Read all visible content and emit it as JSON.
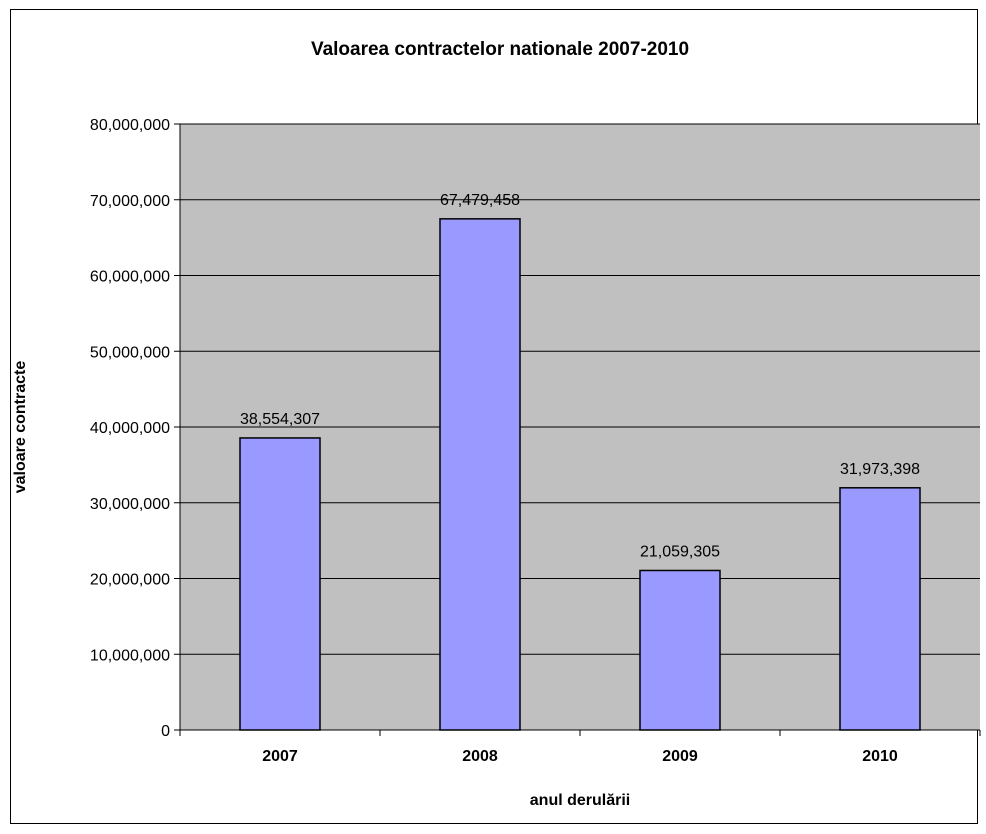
{
  "chart_data": {
    "type": "bar",
    "title": "Valoarea contractelor nationale 2007-2010",
    "xlabel": "anul derulării",
    "ylabel": "valoare contracte",
    "categories": [
      "2007",
      "2008",
      "2009",
      "2010"
    ],
    "values": [
      38554307,
      67479458,
      21059305,
      31973398
    ],
    "data_labels": [
      "38,554,307",
      "67,479,458",
      "21,059,305",
      "31,973,398"
    ],
    "ylim": [
      0,
      80000000
    ],
    "yticks": [
      0,
      10000000,
      20000000,
      30000000,
      40000000,
      50000000,
      60000000,
      70000000,
      80000000
    ],
    "ytick_labels": [
      "0",
      "10,000,000",
      "20,000,000",
      "30,000,000",
      "40,000,000",
      "50,000,000",
      "60,000,000",
      "70,000,000",
      "80,000,000"
    ],
    "grid": true,
    "legend": "none"
  },
  "colors": {
    "plot_bg": "#c0c0c0",
    "bar_fill": "#9999ff",
    "bar_stroke": "#000000",
    "grid": "#000000"
  }
}
